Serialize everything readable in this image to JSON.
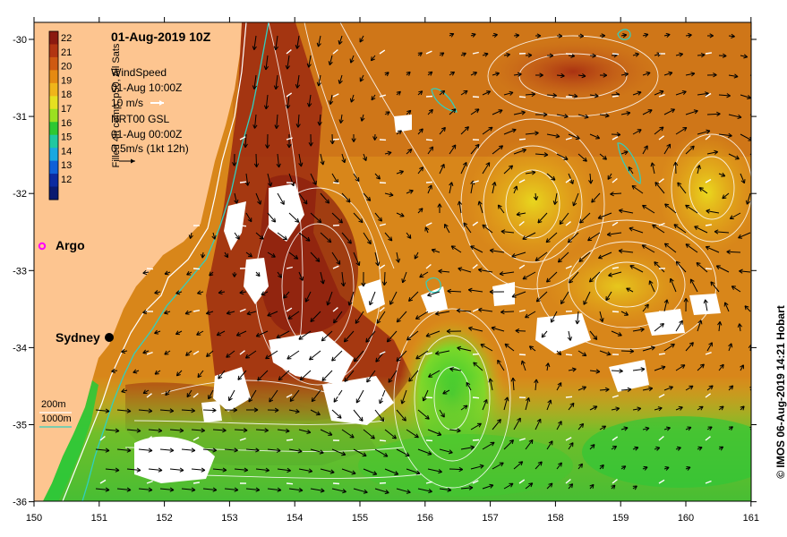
{
  "title": "01-Aug-2019 10Z",
  "colorbar": {
    "label": "Filled 4h comp, p50, All Sats",
    "ticks": [
      "22",
      "21",
      "20",
      "19",
      "18",
      "17",
      "16",
      "15",
      "14",
      "13",
      "12"
    ],
    "colors": [
      "#8b1a10",
      "#b23512",
      "#cf5a12",
      "#e58a12",
      "#f0b51a",
      "#e6e020",
      "#9be020",
      "#2ec832",
      "#20c8a0",
      "#1aa8e0",
      "#1060d8",
      "#0c2aa0",
      "#0a1a70"
    ]
  },
  "legend": {
    "wind_title": "WindSpeed",
    "wind_time": "01-Aug 10:00Z",
    "wind_scale": "10 m/s",
    "current_title": "NRT00 GSL",
    "current_time": "01-Aug 00:00Z",
    "current_scale": "0.5m/s (1kt 12h)"
  },
  "argo_label": "Argo",
  "city_label": "Sydney",
  "depth_legend": {
    "d200": "200m",
    "d1000": "1000m"
  },
  "axes": {
    "x_ticks": [
      "150",
      "151",
      "152",
      "153",
      "154",
      "155",
      "156",
      "157",
      "158",
      "159",
      "160",
      "161"
    ],
    "y_ticks": [
      "-30",
      "-31",
      "-32",
      "-33",
      "-34",
      "-35",
      "-36"
    ]
  },
  "credit": "© IMOS 06-Aug-2019 14:21 Hobart",
  "colors": {
    "land": "#fdc590",
    "wind_arrow": "#ffffff",
    "current_arrow": "#000000",
    "argo": "#ff00ff",
    "isobath_200": "#ffffff",
    "isobath_1000": "#30d0c0"
  }
}
